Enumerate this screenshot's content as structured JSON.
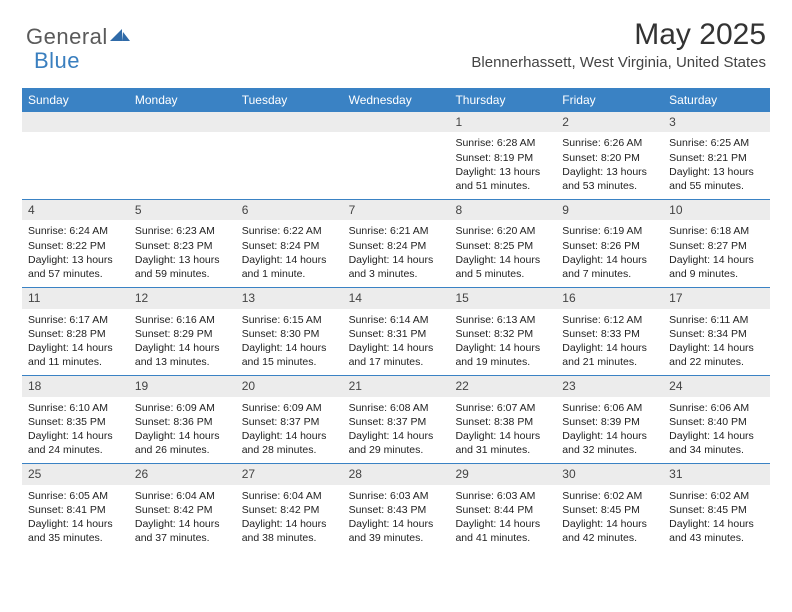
{
  "logo": {
    "word1": "General",
    "word2": "Blue",
    "grayColor": "#5a5a5a",
    "blueColor": "#3a7fbf",
    "markColor": "#2f6aa8"
  },
  "header": {
    "monthTitle": "May 2025",
    "location": "Blennerhassett, West Virginia, United States"
  },
  "style": {
    "headerBarColor": "#3a82c4",
    "headerTextColor": "#ffffff",
    "dayNumBarColor": "#ececec",
    "rowBorderColor": "#3a82c4",
    "bodyTextColor": "#222222",
    "pageBg": "#ffffff",
    "weekdayFontSize": 12,
    "dayNumFontSize": 12,
    "dayBodyFontSize": 10.5,
    "titleFontSize": 30,
    "locationFontSize": 15
  },
  "weekdays": [
    "Sunday",
    "Monday",
    "Tuesday",
    "Wednesday",
    "Thursday",
    "Friday",
    "Saturday"
  ],
  "weeks": [
    [
      {
        "empty": true
      },
      {
        "empty": true
      },
      {
        "empty": true
      },
      {
        "empty": true
      },
      {
        "num": "1",
        "sunrise": "6:28 AM",
        "sunset": "8:19 PM",
        "daylight": "13 hours and 51 minutes."
      },
      {
        "num": "2",
        "sunrise": "6:26 AM",
        "sunset": "8:20 PM",
        "daylight": "13 hours and 53 minutes."
      },
      {
        "num": "3",
        "sunrise": "6:25 AM",
        "sunset": "8:21 PM",
        "daylight": "13 hours and 55 minutes."
      }
    ],
    [
      {
        "num": "4",
        "sunrise": "6:24 AM",
        "sunset": "8:22 PM",
        "daylight": "13 hours and 57 minutes."
      },
      {
        "num": "5",
        "sunrise": "6:23 AM",
        "sunset": "8:23 PM",
        "daylight": "13 hours and 59 minutes."
      },
      {
        "num": "6",
        "sunrise": "6:22 AM",
        "sunset": "8:24 PM",
        "daylight": "14 hours and 1 minute."
      },
      {
        "num": "7",
        "sunrise": "6:21 AM",
        "sunset": "8:24 PM",
        "daylight": "14 hours and 3 minutes."
      },
      {
        "num": "8",
        "sunrise": "6:20 AM",
        "sunset": "8:25 PM",
        "daylight": "14 hours and 5 minutes."
      },
      {
        "num": "9",
        "sunrise": "6:19 AM",
        "sunset": "8:26 PM",
        "daylight": "14 hours and 7 minutes."
      },
      {
        "num": "10",
        "sunrise": "6:18 AM",
        "sunset": "8:27 PM",
        "daylight": "14 hours and 9 minutes."
      }
    ],
    [
      {
        "num": "11",
        "sunrise": "6:17 AM",
        "sunset": "8:28 PM",
        "daylight": "14 hours and 11 minutes."
      },
      {
        "num": "12",
        "sunrise": "6:16 AM",
        "sunset": "8:29 PM",
        "daylight": "14 hours and 13 minutes."
      },
      {
        "num": "13",
        "sunrise": "6:15 AM",
        "sunset": "8:30 PM",
        "daylight": "14 hours and 15 minutes."
      },
      {
        "num": "14",
        "sunrise": "6:14 AM",
        "sunset": "8:31 PM",
        "daylight": "14 hours and 17 minutes."
      },
      {
        "num": "15",
        "sunrise": "6:13 AM",
        "sunset": "8:32 PM",
        "daylight": "14 hours and 19 minutes."
      },
      {
        "num": "16",
        "sunrise": "6:12 AM",
        "sunset": "8:33 PM",
        "daylight": "14 hours and 21 minutes."
      },
      {
        "num": "17",
        "sunrise": "6:11 AM",
        "sunset": "8:34 PM",
        "daylight": "14 hours and 22 minutes."
      }
    ],
    [
      {
        "num": "18",
        "sunrise": "6:10 AM",
        "sunset": "8:35 PM",
        "daylight": "14 hours and 24 minutes."
      },
      {
        "num": "19",
        "sunrise": "6:09 AM",
        "sunset": "8:36 PM",
        "daylight": "14 hours and 26 minutes."
      },
      {
        "num": "20",
        "sunrise": "6:09 AM",
        "sunset": "8:37 PM",
        "daylight": "14 hours and 28 minutes."
      },
      {
        "num": "21",
        "sunrise": "6:08 AM",
        "sunset": "8:37 PM",
        "daylight": "14 hours and 29 minutes."
      },
      {
        "num": "22",
        "sunrise": "6:07 AM",
        "sunset": "8:38 PM",
        "daylight": "14 hours and 31 minutes."
      },
      {
        "num": "23",
        "sunrise": "6:06 AM",
        "sunset": "8:39 PM",
        "daylight": "14 hours and 32 minutes."
      },
      {
        "num": "24",
        "sunrise": "6:06 AM",
        "sunset": "8:40 PM",
        "daylight": "14 hours and 34 minutes."
      }
    ],
    [
      {
        "num": "25",
        "sunrise": "6:05 AM",
        "sunset": "8:41 PM",
        "daylight": "14 hours and 35 minutes."
      },
      {
        "num": "26",
        "sunrise": "6:04 AM",
        "sunset": "8:42 PM",
        "daylight": "14 hours and 37 minutes."
      },
      {
        "num": "27",
        "sunrise": "6:04 AM",
        "sunset": "8:42 PM",
        "daylight": "14 hours and 38 minutes."
      },
      {
        "num": "28",
        "sunrise": "6:03 AM",
        "sunset": "8:43 PM",
        "daylight": "14 hours and 39 minutes."
      },
      {
        "num": "29",
        "sunrise": "6:03 AM",
        "sunset": "8:44 PM",
        "daylight": "14 hours and 41 minutes."
      },
      {
        "num": "30",
        "sunrise": "6:02 AM",
        "sunset": "8:45 PM",
        "daylight": "14 hours and 42 minutes."
      },
      {
        "num": "31",
        "sunrise": "6:02 AM",
        "sunset": "8:45 PM",
        "daylight": "14 hours and 43 minutes."
      }
    ]
  ],
  "labels": {
    "sunrisePrefix": "Sunrise: ",
    "sunsetPrefix": "Sunset: ",
    "daylightPrefix": "Daylight: "
  }
}
